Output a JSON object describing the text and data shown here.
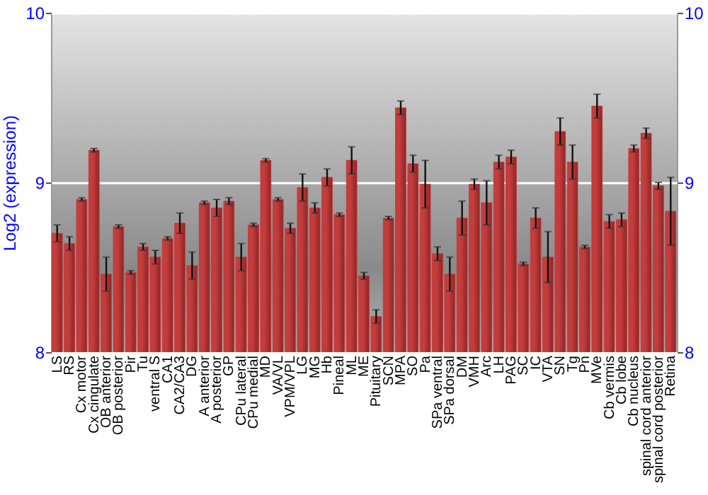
{
  "chart_data": {
    "type": "bar",
    "ylabel": "Log2 (expression)",
    "categories": [
      "LS",
      "RS",
      "Cx motor",
      "Cx cingulate",
      "OB anterior",
      "OB posterior",
      "Pir",
      "Tu",
      "ventral S",
      "CA1",
      "CA2/CA3",
      "DG",
      "A anterior",
      "A posterior",
      "GP",
      "CPu lateral",
      "CPu medial",
      "MD",
      "VA/VL",
      "VPM/VPL",
      "LG",
      "MG",
      "Hb",
      "Pineal",
      "ML",
      "ME",
      "Pituitary",
      "SCN",
      "MPA",
      "SO",
      "Pa",
      "SPa ventral",
      "SPa dorsal",
      "DM",
      "VMH",
      "Arc",
      "LH",
      "PAG",
      "SC",
      "IC",
      "VTA",
      "SN",
      "Tg",
      "Pn",
      "MVe",
      "Cb vermis",
      "Cb lobe",
      "Cb nucleus",
      "spinal cord anterior",
      "spinal cord posterior",
      "Retina"
    ],
    "values": [
      8.7,
      8.64,
      8.9,
      9.19,
      8.46,
      8.74,
      8.47,
      8.62,
      8.56,
      8.67,
      8.76,
      8.51,
      8.88,
      8.85,
      8.89,
      8.56,
      8.75,
      9.13,
      8.9,
      8.73,
      8.97,
      8.85,
      9.03,
      8.81,
      9.13,
      8.45,
      8.21,
      8.79,
      9.44,
      9.11,
      8.99,
      8.58,
      8.46,
      8.79,
      8.99,
      8.88,
      9.12,
      9.15,
      8.52,
      8.79,
      8.56,
      9.3,
      9.12,
      8.62,
      9.45,
      8.77,
      8.78,
      9.2,
      9.29,
      8.98,
      8.83
    ],
    "errors": [
      0.05,
      0.04,
      0.01,
      0.01,
      0.1,
      0.01,
      0.01,
      0.02,
      0.04,
      0.01,
      0.06,
      0.08,
      0.01,
      0.05,
      0.02,
      0.08,
      0.01,
      0.01,
      0.01,
      0.03,
      0.08,
      0.03,
      0.05,
      0.01,
      0.08,
      0.02,
      0.04,
      0.01,
      0.04,
      0.05,
      0.14,
      0.04,
      0.1,
      0.1,
      0.03,
      0.13,
      0.04,
      0.04,
      0.01,
      0.06,
      0.15,
      0.08,
      0.1,
      0.01,
      0.07,
      0.04,
      0.04,
      0.02,
      0.03,
      0.02,
      0.2
    ],
    "color": "#c43c3c",
    "ylim": [
      8,
      10
    ],
    "yticks": [
      8,
      9,
      10
    ],
    "y2lim": [
      8,
      10
    ],
    "y2ticks": [
      8,
      9,
      10
    ],
    "grid": "y"
  }
}
